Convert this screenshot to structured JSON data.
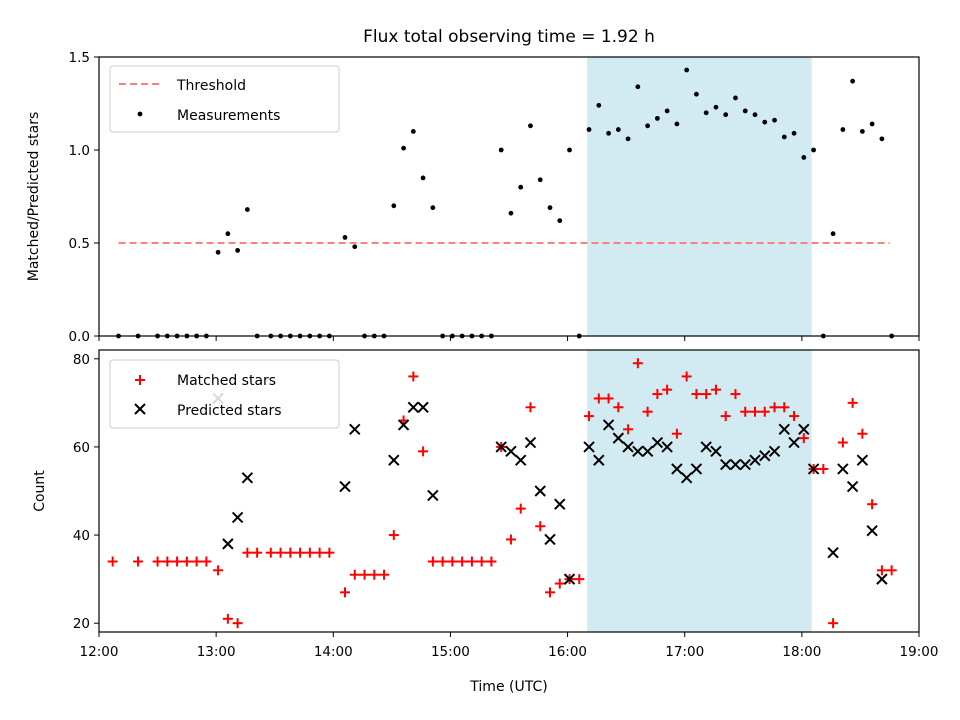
{
  "chart_data": [
    {
      "type": "scatter",
      "title": "Flux total observing time = 1.92 h",
      "xlabel": "",
      "ylabel": "Matched/Predicted stars",
      "xlim": [
        "12:00",
        "19:00"
      ],
      "ylim": [
        0,
        1.5
      ],
      "yticks": [
        "0.0",
        "0.5",
        "1.0",
        "1.5"
      ],
      "grid": false,
      "legend_position": "top-left",
      "shaded_span": {
        "x_start": "16:10",
        "x_end": "18:05",
        "color": "#add8e6"
      },
      "threshold": {
        "name": "Threshold",
        "value": 0.5,
        "x_start": "12:10",
        "x_end": "18:45",
        "color": "#ff7f7f",
        "style": "dashed"
      },
      "series": [
        {
          "name": "Measurements",
          "color": "#000000",
          "marker": "dot",
          "points": [
            [
              "12:10",
              0.0
            ],
            [
              "12:20",
              0.0
            ],
            [
              "12:30",
              0.0
            ],
            [
              "12:35",
              0.0
            ],
            [
              "12:40",
              0.0
            ],
            [
              "12:45",
              0.0
            ],
            [
              "12:50",
              0.0
            ],
            [
              "12:55",
              0.0
            ],
            [
              "13:01",
              0.45
            ],
            [
              "13:06",
              0.55
            ],
            [
              "13:11",
              0.46
            ],
            [
              "13:16",
              0.68
            ],
            [
              "13:21",
              0.0
            ],
            [
              "13:28",
              0.0
            ],
            [
              "13:33",
              0.0
            ],
            [
              "13:38",
              0.0
            ],
            [
              "13:43",
              0.0
            ],
            [
              "13:48",
              0.0
            ],
            [
              "13:53",
              0.0
            ],
            [
              "13:58",
              0.0
            ],
            [
              "14:06",
              0.53
            ],
            [
              "14:11",
              0.48
            ],
            [
              "14:16",
              0.0
            ],
            [
              "14:21",
              0.0
            ],
            [
              "14:26",
              0.0
            ],
            [
              "14:31",
              0.7
            ],
            [
              "14:36",
              1.01
            ],
            [
              "14:41",
              1.1
            ],
            [
              "14:46",
              0.85
            ],
            [
              "14:51",
              0.69
            ],
            [
              "14:56",
              0.0
            ],
            [
              "15:01",
              0.0
            ],
            [
              "15:06",
              0.0
            ],
            [
              "15:11",
              0.0
            ],
            [
              "15:16",
              0.0
            ],
            [
              "15:21",
              0.0
            ],
            [
              "15:26",
              1.0
            ],
            [
              "15:31",
              0.66
            ],
            [
              "15:36",
              0.8
            ],
            [
              "15:41",
              1.13
            ],
            [
              "15:46",
              0.84
            ],
            [
              "15:51",
              0.69
            ],
            [
              "15:56",
              0.62
            ],
            [
              "16:01",
              1.0
            ],
            [
              "16:06",
              0.0
            ],
            [
              "16:11",
              1.11
            ],
            [
              "16:16",
              1.24
            ],
            [
              "16:21",
              1.09
            ],
            [
              "16:26",
              1.11
            ],
            [
              "16:31",
              1.06
            ],
            [
              "16:36",
              1.34
            ],
            [
              "16:41",
              1.13
            ],
            [
              "16:46",
              1.17
            ],
            [
              "16:51",
              1.21
            ],
            [
              "16:56",
              1.14
            ],
            [
              "17:01",
              1.43
            ],
            [
              "17:06",
              1.3
            ],
            [
              "17:11",
              1.2
            ],
            [
              "17:16",
              1.23
            ],
            [
              "17:21",
              1.19
            ],
            [
              "17:26",
              1.28
            ],
            [
              "17:31",
              1.21
            ],
            [
              "17:36",
              1.19
            ],
            [
              "17:41",
              1.15
            ],
            [
              "17:46",
              1.16
            ],
            [
              "17:51",
              1.07
            ],
            [
              "17:56",
              1.09
            ],
            [
              "18:01",
              0.96
            ],
            [
              "18:06",
              1.0
            ],
            [
              "18:11",
              0.0
            ],
            [
              "18:16",
              0.55
            ],
            [
              "18:21",
              1.11
            ],
            [
              "18:26",
              1.37
            ],
            [
              "18:31",
              1.1
            ],
            [
              "18:36",
              1.14
            ],
            [
              "18:41",
              1.06
            ],
            [
              "18:46",
              0.0
            ]
          ]
        }
      ]
    },
    {
      "type": "scatter",
      "title": "",
      "xlabel": "Time (UTC)",
      "ylabel": "Count",
      "xlim": [
        "12:00",
        "19:00"
      ],
      "xticks": [
        "12:00",
        "13:00",
        "14:00",
        "15:00",
        "16:00",
        "17:00",
        "18:00",
        "19:00"
      ],
      "ylim": [
        18,
        82
      ],
      "yticks": [
        "20",
        "40",
        "60",
        "80"
      ],
      "grid": false,
      "legend_position": "top-left",
      "shaded_span": {
        "x_start": "16:10",
        "x_end": "18:05",
        "color": "#add8e6"
      },
      "series": [
        {
          "name": "Matched stars",
          "color": "#ff0000",
          "marker": "plus",
          "points": [
            [
              "12:07",
              34
            ],
            [
              "12:20",
              34
            ],
            [
              "12:30",
              34
            ],
            [
              "12:35",
              34
            ],
            [
              "12:40",
              34
            ],
            [
              "12:45",
              34
            ],
            [
              "12:50",
              34
            ],
            [
              "12:55",
              34
            ],
            [
              "13:01",
              32
            ],
            [
              "13:06",
              21
            ],
            [
              "13:11",
              20
            ],
            [
              "13:16",
              36
            ],
            [
              "13:21",
              36
            ],
            [
              "13:28",
              36
            ],
            [
              "13:33",
              36
            ],
            [
              "13:38",
              36
            ],
            [
              "13:43",
              36
            ],
            [
              "13:48",
              36
            ],
            [
              "13:53",
              36
            ],
            [
              "13:58",
              36
            ],
            [
              "14:06",
              27
            ],
            [
              "14:11",
              31
            ],
            [
              "14:16",
              31
            ],
            [
              "14:21",
              31
            ],
            [
              "14:26",
              31
            ],
            [
              "14:31",
              40
            ],
            [
              "14:36",
              66
            ],
            [
              "14:41",
              76
            ],
            [
              "14:46",
              59
            ],
            [
              "14:51",
              34
            ],
            [
              "14:56",
              34
            ],
            [
              "15:01",
              34
            ],
            [
              "15:06",
              34
            ],
            [
              "15:11",
              34
            ],
            [
              "15:16",
              34
            ],
            [
              "15:21",
              34
            ],
            [
              "15:26",
              60
            ],
            [
              "15:31",
              39
            ],
            [
              "15:36",
              46
            ],
            [
              "15:41",
              69
            ],
            [
              "15:46",
              42
            ],
            [
              "15:51",
              27
            ],
            [
              "15:56",
              29
            ],
            [
              "16:01",
              30
            ],
            [
              "16:06",
              30
            ],
            [
              "16:11",
              67
            ],
            [
              "16:16",
              71
            ],
            [
              "16:21",
              71
            ],
            [
              "16:26",
              69
            ],
            [
              "16:31",
              64
            ],
            [
              "16:36",
              79
            ],
            [
              "16:41",
              68
            ],
            [
              "16:46",
              72
            ],
            [
              "16:51",
              73
            ],
            [
              "16:56",
              63
            ],
            [
              "17:01",
              76
            ],
            [
              "17:06",
              72
            ],
            [
              "17:11",
              72
            ],
            [
              "17:16",
              73
            ],
            [
              "17:21",
              67
            ],
            [
              "17:26",
              72
            ],
            [
              "17:31",
              68
            ],
            [
              "17:36",
              68
            ],
            [
              "17:41",
              68
            ],
            [
              "17:46",
              69
            ],
            [
              "17:51",
              69
            ],
            [
              "17:56",
              67
            ],
            [
              "18:01",
              62
            ],
            [
              "18:06",
              55
            ],
            [
              "18:11",
              55
            ],
            [
              "18:16",
              20
            ],
            [
              "18:21",
              61
            ],
            [
              "18:26",
              70
            ],
            [
              "18:31",
              63
            ],
            [
              "18:36",
              47
            ],
            [
              "18:41",
              32
            ],
            [
              "18:46",
              32
            ]
          ]
        },
        {
          "name": "Predicted stars",
          "color": "#000000",
          "marker": "x",
          "points": [
            [
              "13:01",
              71
            ],
            [
              "13:06",
              38
            ],
            [
              "13:11",
              44
            ],
            [
              "13:16",
              53
            ],
            [
              "14:06",
              51
            ],
            [
              "14:11",
              64
            ],
            [
              "14:31",
              57
            ],
            [
              "14:36",
              65
            ],
            [
              "14:41",
              69
            ],
            [
              "14:46",
              69
            ],
            [
              "14:51",
              49
            ],
            [
              "15:26",
              60
            ],
            [
              "15:31",
              59
            ],
            [
              "15:36",
              57
            ],
            [
              "15:41",
              61
            ],
            [
              "15:46",
              50
            ],
            [
              "15:51",
              39
            ],
            [
              "15:56",
              47
            ],
            [
              "16:01",
              30
            ],
            [
              "16:11",
              60
            ],
            [
              "16:16",
              57
            ],
            [
              "16:21",
              65
            ],
            [
              "16:26",
              62
            ],
            [
              "16:31",
              60
            ],
            [
              "16:36",
              59
            ],
            [
              "16:41",
              59
            ],
            [
              "16:46",
              61
            ],
            [
              "16:51",
              60
            ],
            [
              "16:56",
              55
            ],
            [
              "17:01",
              53
            ],
            [
              "17:06",
              55
            ],
            [
              "17:11",
              60
            ],
            [
              "17:16",
              59
            ],
            [
              "17:21",
              56
            ],
            [
              "17:26",
              56
            ],
            [
              "17:31",
              56
            ],
            [
              "17:36",
              57
            ],
            [
              "17:41",
              58
            ],
            [
              "17:46",
              59
            ],
            [
              "17:51",
              64
            ],
            [
              "17:56",
              61
            ],
            [
              "18:01",
              64
            ],
            [
              "18:06",
              55
            ],
            [
              "18:16",
              36
            ],
            [
              "18:21",
              55
            ],
            [
              "18:26",
              51
            ],
            [
              "18:31",
              57
            ],
            [
              "18:36",
              41
            ],
            [
              "18:41",
              30
            ]
          ]
        }
      ]
    }
  ]
}
